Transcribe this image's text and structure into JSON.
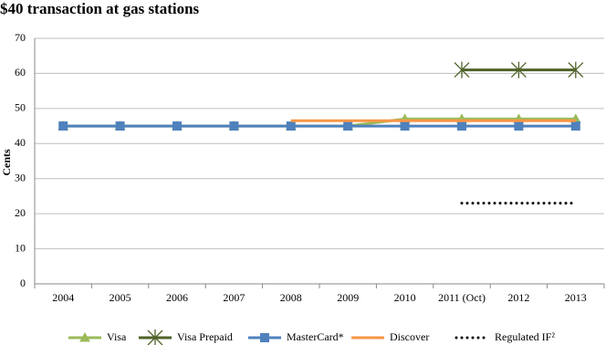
{
  "chart_data": {
    "type": "line",
    "title": "$40 transaction at gas stations",
    "y_label": "Cents",
    "categories": [
      "2004",
      "2005",
      "2006",
      "2007",
      "2008",
      "2009",
      "2010",
      "2011 (Oct)",
      "2012",
      "2013"
    ],
    "ylim": [
      0,
      70
    ],
    "yticks": [
      0,
      10,
      20,
      30,
      40,
      50,
      60,
      70
    ],
    "grid": true,
    "legend": "bottom",
    "series": [
      {
        "name": "Visa",
        "color": "#9bbb59",
        "marker": "triangle",
        "dash": "solid",
        "values": [
          45,
          45,
          45,
          45,
          45,
          45,
          47,
          47,
          47,
          47
        ]
      },
      {
        "name": "Visa Prepaid",
        "color": "#4f6228",
        "marker": "star",
        "dash": "solid",
        "values": [
          null,
          null,
          null,
          null,
          null,
          null,
          null,
          61,
          61,
          61
        ]
      },
      {
        "name": "MasterCard*",
        "color": "#4f81bd",
        "marker": "square",
        "dash": "solid",
        "values": [
          45,
          45,
          45,
          45,
          45,
          45,
          45,
          45,
          45,
          45
        ]
      },
      {
        "name": "Discover",
        "color": "#f79646",
        "marker": "none",
        "dash": "solid",
        "values": [
          null,
          null,
          null,
          null,
          46.5,
          46.5,
          46.5,
          46.5,
          46.5,
          46.5
        ]
      },
      {
        "name": "Regulated IF²",
        "color": "#000000",
        "marker": "none",
        "dash": "dotted",
        "values": [
          null,
          null,
          null,
          null,
          null,
          null,
          null,
          23,
          23,
          23
        ]
      }
    ]
  }
}
